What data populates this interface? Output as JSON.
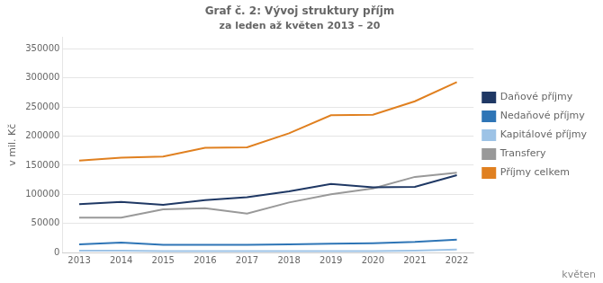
{
  "chart_data": {
    "type": "line",
    "title": "Graf č. 2: Vývoj struktury příjm",
    "subtitle": "za leden až květen 2013 – 20",
    "y_label": "v mil. Kč",
    "annotations": [
      "květen"
    ],
    "x": [
      2013,
      2014,
      2015,
      2016,
      2017,
      2018,
      2019,
      2020,
      2021,
      2022
    ],
    "xlim": [
      2012.6,
      2022.4
    ],
    "xticks": [
      2013,
      2014,
      2015,
      2016,
      2017,
      2018,
      2019,
      2020,
      2021,
      2022
    ],
    "ylim": [
      0,
      370000
    ],
    "yticks": [
      0,
      50000,
      100000,
      150000,
      200000,
      250000,
      300000,
      350000
    ],
    "grid": true,
    "legend": "right",
    "series": [
      {
        "name": "Daňové příjmy",
        "color": "#1f3864",
        "values": [
          83000,
          87000,
          82000,
          90000,
          95000,
          105000,
          118000,
          112000,
          113000,
          133000
        ]
      },
      {
        "name": "Nedaňové příjmy",
        "color": "#2e75b6",
        "values": [
          14000,
          17000,
          13000,
          13000,
          13000,
          14000,
          15000,
          16000,
          18000,
          22000
        ]
      },
      {
        "name": "Kapitálové příjmy",
        "color": "#9dc3e6",
        "values": [
          3000,
          3000,
          2500,
          2500,
          2500,
          2500,
          2500,
          2500,
          3000,
          5000
        ]
      },
      {
        "name": "Transfery",
        "color": "#999999",
        "values": [
          60000,
          60000,
          74000,
          76000,
          67000,
          86000,
          100000,
          110000,
          130000,
          137000
        ]
      },
      {
        "name": "Příjmy celkem",
        "color": "#e08020",
        "values": [
          158000,
          163000,
          165000,
          180000,
          181000,
          205000,
          236000,
          237000,
          260000,
          293000
        ]
      }
    ]
  }
}
